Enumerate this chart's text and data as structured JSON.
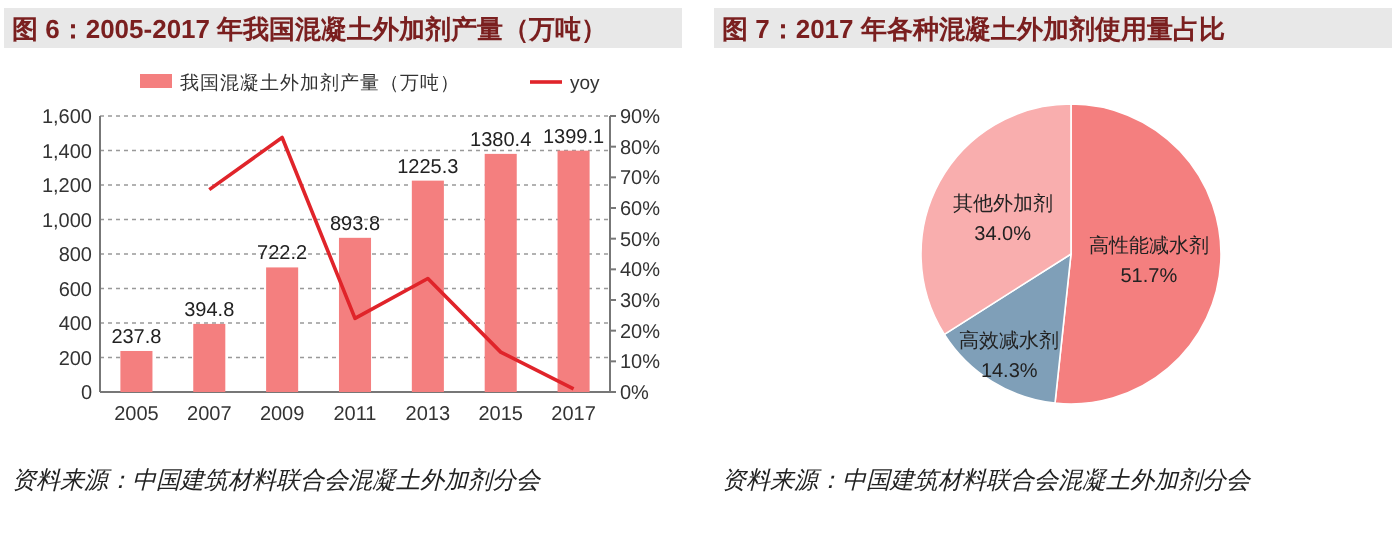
{
  "chart_data": [
    {
      "type": "bar",
      "title": "图 6：2005-2017 年我国混凝土外加剂产量（万吨）",
      "categories": [
        "2005",
        "2007",
        "2009",
        "2011",
        "2013",
        "2015",
        "2017"
      ],
      "series": [
        {
          "name": "我国混凝土外加剂产量（万吨）",
          "color": "#f47f7f",
          "values": [
            237.8,
            394.8,
            722.2,
            893.8,
            1225.3,
            1380.4,
            1399.1
          ],
          "value_labels": [
            "237.8",
            "394.8",
            "722.2",
            "893.8",
            "1225.3",
            "1380.4",
            "1399.1"
          ]
        },
        {
          "name": "yoy",
          "type": "line",
          "axis": "y2",
          "color": "#e0242a",
          "values": [
            null,
            66,
            83,
            24,
            37,
            13,
            1
          ]
        }
      ],
      "ylim": [
        0,
        1600
      ],
      "yticks": [
        0,
        200,
        400,
        600,
        800,
        {
          "value": 1000,
          "label": "1,000"
        },
        {
          "value": 1200,
          "label": "1,200"
        },
        {
          "value": 1400,
          "label": "1,400"
        },
        {
          "value": 1600,
          "label": "1,600"
        }
      ],
      "y2lim": [
        0,
        90
      ],
      "y2ticks": [
        {
          "value": 0,
          "label": "0%"
        },
        {
          "value": 10,
          "label": "10%"
        },
        {
          "value": 20,
          "label": "20%"
        },
        {
          "value": 30,
          "label": "30%"
        },
        {
          "value": 40,
          "label": "40%"
        },
        {
          "value": 50,
          "label": "50%"
        },
        {
          "value": 60,
          "label": "60%"
        },
        {
          "value": 70,
          "label": "70%"
        },
        {
          "value": 80,
          "label": "80%"
        },
        {
          "value": 90,
          "label": "90%"
        }
      ],
      "grid": "y",
      "legend": "top",
      "annotations": [
        "资料来源：中国建筑材料联合会混凝土外加剂分会"
      ]
    },
    {
      "type": "pie",
      "title": "图 7：2017 年各种混凝土外加剂使用量占比",
      "categories": [
        "高性能减水剂",
        "高效减水剂",
        "其他外加剂"
      ],
      "values": [
        51.7,
        14.3,
        34.0
      ],
      "colors": [
        "#f47f7f",
        "#7f9fb8",
        "#f9aeae"
      ],
      "value_labels": [
        "51.7%",
        "14.3%",
        "34.0%"
      ],
      "annotations": [
        "资料来源：中国建筑材料联合会混凝土外加剂分会"
      ]
    }
  ]
}
